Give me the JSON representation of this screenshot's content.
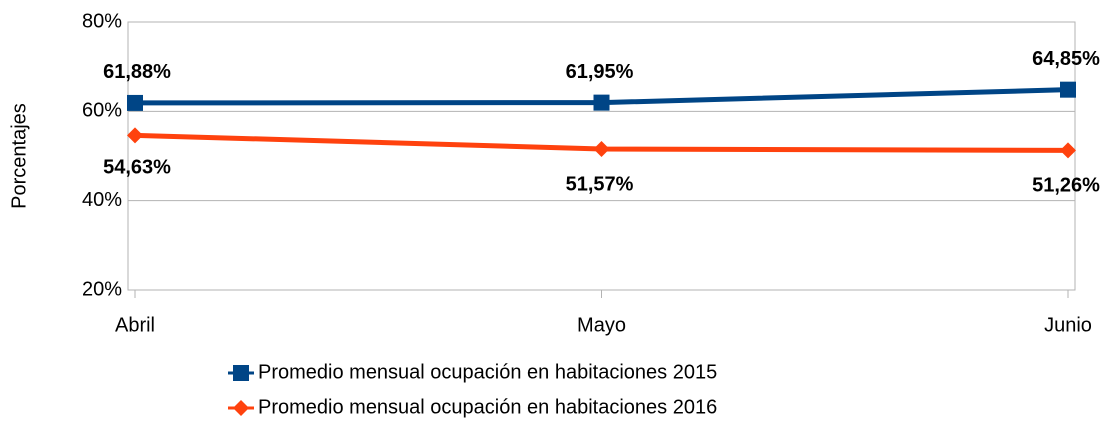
{
  "chart_data": {
    "type": "line",
    "y_label": "Porcentajes",
    "categories": [
      "Abril",
      "Mayo",
      "Junio"
    ],
    "series": [
      {
        "name": "Promedio mensual ocupación en habitaciones 2015",
        "color": "#004586",
        "label_color": "#1f1f80",
        "marker": "square",
        "values": [
          61.88,
          61.95,
          64.85
        ],
        "value_labels": [
          "61,88%",
          "61,95%",
          "64,85%"
        ]
      },
      {
        "name": "Promedio mensual ocupación en habitaciones 2016",
        "color": "#ff420e",
        "label_color": "#8b1a1a",
        "marker": "diamond",
        "values": [
          54.63,
          51.57,
          51.26
        ],
        "value_labels": [
          "54,63%",
          "51,57%",
          "51,26%"
        ]
      }
    ],
    "ylim": [
      20,
      80
    ],
    "yticks": [
      {
        "value": 20,
        "label": "20%"
      },
      {
        "value": 40,
        "label": "40%"
      },
      {
        "value": 60,
        "label": "60%"
      },
      {
        "value": 80,
        "label": "80%"
      }
    ],
    "grid": true
  }
}
